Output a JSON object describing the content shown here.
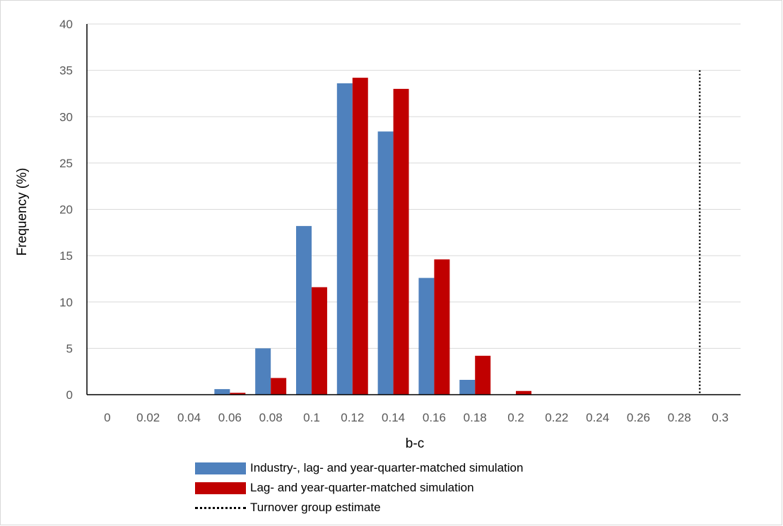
{
  "chart_data": {
    "type": "bar",
    "xlabel": "b-c",
    "ylabel": "Frequency (%)",
    "ylim": [
      0,
      40
    ],
    "yticks": [
      "0",
      "5",
      "10",
      "15",
      "20",
      "25",
      "30",
      "35",
      "40"
    ],
    "categories": [
      "0",
      "0.02",
      "0.04",
      "0.06",
      "0.08",
      "0.1",
      "0.12",
      "0.14",
      "0.16",
      "0.18",
      "0.2",
      "0.22",
      "0.24",
      "0.26",
      "0.28",
      "0.3"
    ],
    "series": [
      {
        "name": "Industry-, lag- and year-quarter-matched simulation",
        "color": "#4f81bd",
        "values": [
          0,
          0,
          0,
          0.6,
          5.0,
          18.2,
          33.6,
          28.4,
          12.6,
          1.6,
          0,
          0,
          0,
          0,
          0,
          0
        ]
      },
      {
        "name": "Lag- and year-quarter-matched simulation",
        "color": "#c00000",
        "values": [
          0,
          0,
          0,
          0.2,
          1.8,
          11.6,
          34.2,
          33.0,
          14.6,
          4.2,
          0.4,
          0,
          0,
          0,
          0,
          0
        ]
      }
    ],
    "reference_line": {
      "name": "Turnover group estimate",
      "x": 0.29,
      "y_top": 35,
      "style": "dotted",
      "color": "#000000"
    },
    "grid": true,
    "legend_position": "bottom"
  }
}
